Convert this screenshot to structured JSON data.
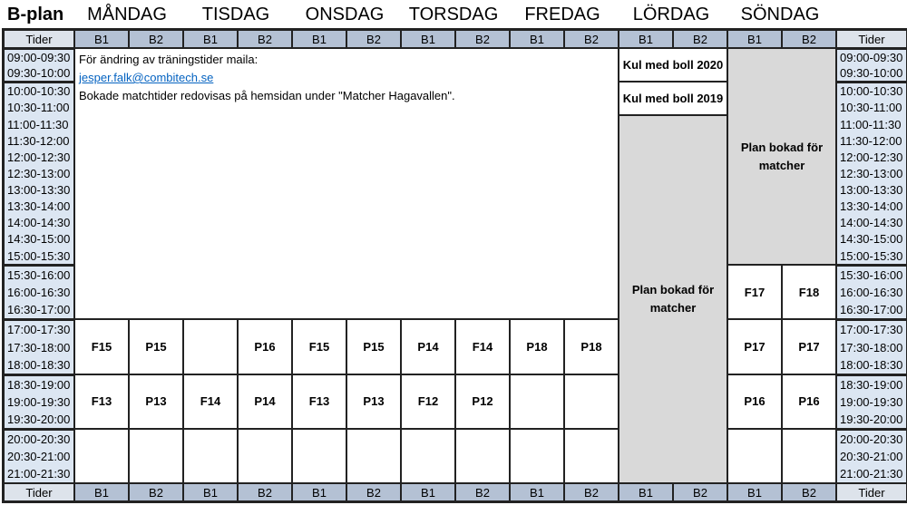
{
  "title": "B-plan",
  "days": [
    "MÅNDAG",
    "TISDAG",
    "ONSDAG",
    "TORSDAG",
    "FREDAG",
    "LÖRDAG",
    "SÖNDAG"
  ],
  "tider_label": "Tider",
  "fields": [
    "B1",
    "B2"
  ],
  "times": [
    "09:00-09:30",
    "09:30-10:00",
    "10:00-10:30",
    "10:30-11:00",
    "11:00-11:30",
    "11:30-12:00",
    "12:00-12:30",
    "12:30-13:00",
    "13:00-13:30",
    "13:30-14:00",
    "14:00-14:30",
    "14:30-15:00",
    "15:00-15:30",
    "15:30-16:00",
    "16:00-16:30",
    "16:30-17:00",
    "17:00-17:30",
    "17:30-18:00",
    "18:00-18:30",
    "18:30-19:00",
    "19:00-19:30",
    "19:30-20:00",
    "20:00-20:30",
    "20:30-21:00",
    "21:00-21:30"
  ],
  "note": {
    "line1": "För ändring av träningstider maila:",
    "email": "jesper.falk@combitech.se",
    "line2": "Bokade matchtider redovisas på hemsidan under \"Matcher Hagavallen\"."
  },
  "weekday_slots": {
    "17:00-18:30": [
      "F15",
      "P15",
      "",
      "P16",
      "F15",
      "P15",
      "P14",
      "F14",
      "P18",
      "P18"
    ],
    "18:30-20:00": [
      "F13",
      "P13",
      "F14",
      "P14",
      "F13",
      "P13",
      "F12",
      "P12",
      "",
      ""
    ],
    "20:00-21:30": [
      "",
      "",
      "",
      "",
      "",
      "",
      "",
      "",
      "",
      ""
    ]
  },
  "lordag": {
    "kul_2020": "Kul med boll 2020",
    "kul_2019": "Kul med boll 2019",
    "booked": "Plan bokad för matcher"
  },
  "sondag": {
    "booked": "Plan bokad för matcher",
    "slots": [
      [
        "F17",
        "F18"
      ],
      [
        "P17",
        "P17"
      ],
      [
        "P16",
        "P16"
      ],
      [
        "",
        ""
      ]
    ]
  },
  "colors": {
    "header": "#b4c1d4",
    "time_bg": "#dce6f2",
    "booked": "#d9d9d9",
    "link": "#0563c1"
  }
}
